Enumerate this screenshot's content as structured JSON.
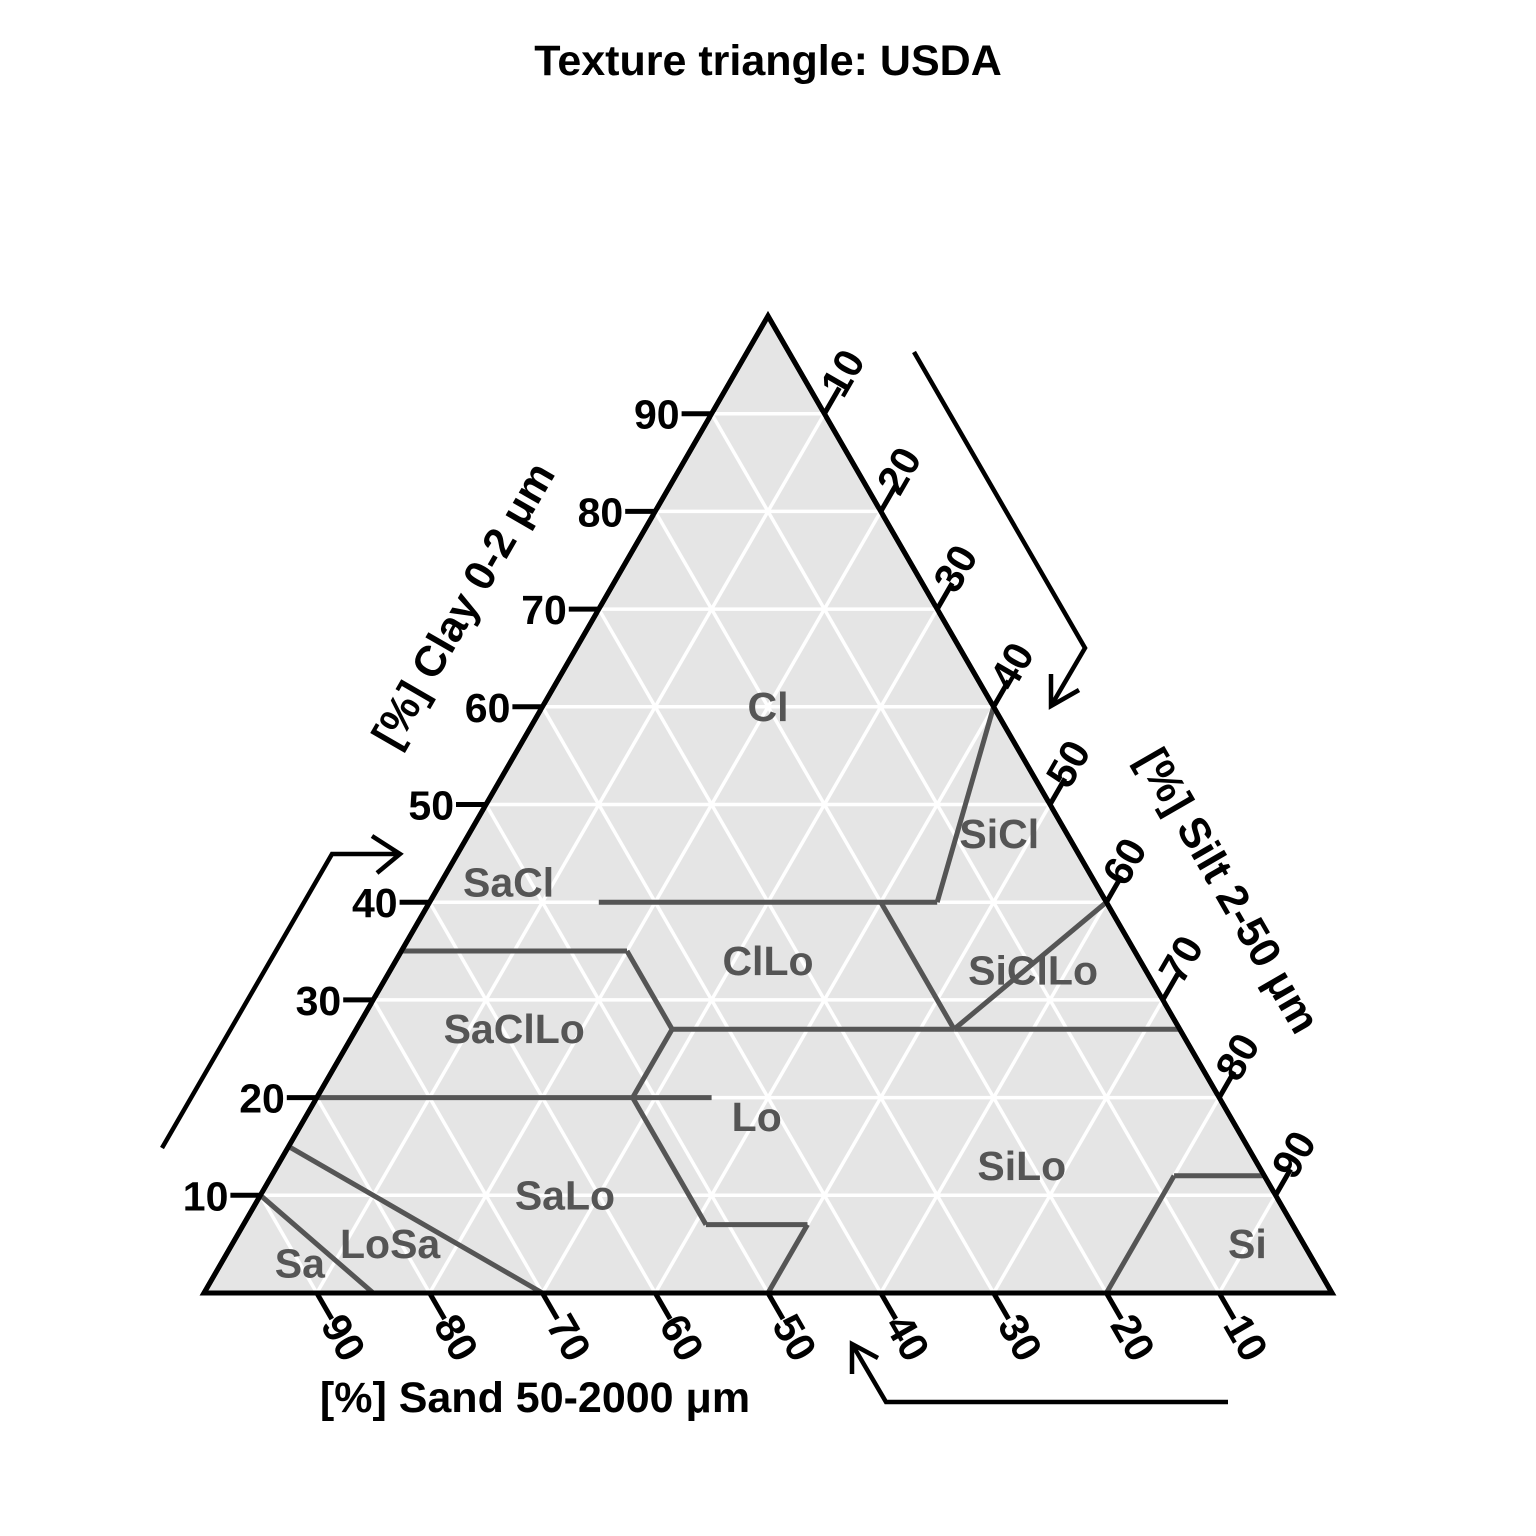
{
  "title": "Texture triangle: USDA",
  "axes": {
    "clay": {
      "title": "[%] Clay 0-2 μm",
      "ticks": [
        "10",
        "20",
        "30",
        "40",
        "50",
        "60",
        "70",
        "80",
        "90"
      ]
    },
    "silt": {
      "title": "[%] Silt 2-50 μm",
      "ticks": [
        "10",
        "20",
        "30",
        "40",
        "50",
        "60",
        "70",
        "80",
        "90"
      ]
    },
    "sand": {
      "title": "[%] Sand 50-2000 μm",
      "ticks": [
        "90",
        "80",
        "70",
        "60",
        "50",
        "40",
        "30",
        "20",
        "10"
      ]
    }
  },
  "chart_data": {
    "type": "ternary",
    "components": [
      "clay",
      "silt",
      "sand"
    ],
    "grid_step": 10,
    "classes": [
      {
        "label": "Cl",
        "clay": 60,
        "sand": 20
      },
      {
        "label": "SiCl",
        "clay": 47,
        "sand": 6
      },
      {
        "label": "SaCl",
        "clay": 42,
        "sand": 52
      },
      {
        "label": "ClLo",
        "clay": 34,
        "sand": 33
      },
      {
        "label": "SiClLo",
        "clay": 33,
        "sand": 10
      },
      {
        "label": "SaClLo",
        "clay": 27,
        "sand": 59
      },
      {
        "label": "Lo",
        "clay": 18,
        "sand": 42
      },
      {
        "label": "SiLo",
        "clay": 13,
        "sand": 21
      },
      {
        "label": "SaLo",
        "clay": 10,
        "sand": 63
      },
      {
        "label": "LoSa",
        "clay": 5,
        "sand": 81
      },
      {
        "label": "Sa",
        "clay": 3,
        "sand": 90
      },
      {
        "label": "Si",
        "clay": 5,
        "sand": 5
      }
    ],
    "boundaries": [
      [
        [
          55,
          45
        ],
        [
          35,
          65
        ]
      ],
      [
        [
          40,
          45
        ],
        [
          40,
          15
        ]
      ],
      [
        [
          40,
          15
        ],
        [
          60,
          0
        ]
      ],
      [
        [
          40,
          20
        ],
        [
          27,
          20
        ]
      ],
      [
        [
          40,
          0
        ],
        [
          27,
          20
        ]
      ],
      [
        [
          35,
          65
        ],
        [
          35,
          45
        ]
      ],
      [
        [
          35,
          45
        ],
        [
          27,
          45
        ]
      ],
      [
        [
          27,
          45
        ],
        [
          27,
          20
        ]
      ],
      [
        [
          27,
          20
        ],
        [
          27,
          0
        ]
      ],
      [
        [
          27,
          45
        ],
        [
          20,
          52
        ]
      ],
      [
        [
          20,
          45
        ],
        [
          20,
          80
        ]
      ],
      [
        [
          20,
          52
        ],
        [
          7,
          52
        ]
      ],
      [
        [
          7,
          52
        ],
        [
          7,
          43
        ]
      ],
      [
        [
          7,
          43
        ],
        [
          0,
          50
        ]
      ],
      [
        [
          12,
          8
        ],
        [
          0,
          20
        ]
      ],
      [
        [
          12,
          8
        ],
        [
          12,
          0
        ]
      ],
      [
        [
          15,
          85
        ],
        [
          0,
          70
        ]
      ],
      [
        [
          10,
          90
        ],
        [
          0,
          85
        ]
      ]
    ]
  }
}
